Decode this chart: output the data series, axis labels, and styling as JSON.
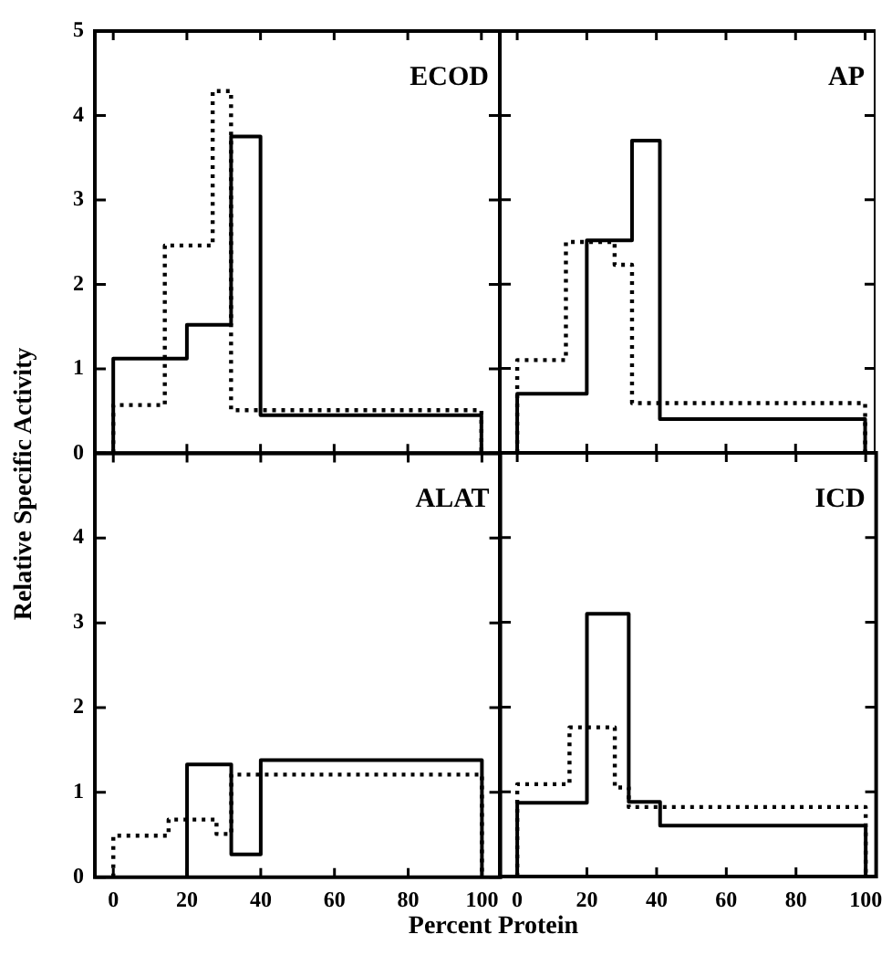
{
  "chart_data": [
    {
      "type": "step",
      "title": "ECOD",
      "ylabel": "Relative Specific Activity",
      "xlim": [
        -5,
        105
      ],
      "ylim": [
        0,
        5
      ],
      "xticks": [
        0,
        20,
        40,
        60,
        80,
        100
      ],
      "yticks": [
        0,
        1,
        2,
        3,
        4,
        5
      ],
      "tick_labels": "y",
      "series": [
        {
          "color": "#000000",
          "line_style": "solid",
          "x": [
            0,
            20,
            32,
            40,
            100,
            100
          ],
          "values": [
            0,
            1.12,
            1.52,
            3.75,
            0.45,
            0
          ]
        },
        {
          "color": "#000000",
          "line_style": "dotted",
          "x": [
            0,
            14,
            27,
            32,
            100,
            100
          ],
          "values": [
            0,
            0.57,
            2.46,
            4.29,
            0.51,
            0
          ]
        }
      ]
    },
    {
      "type": "step",
      "title": "AP",
      "xlim": [
        -5,
        103
      ],
      "ylim": [
        0,
        5
      ],
      "xticks": [
        0,
        20,
        40,
        60,
        80,
        100
      ],
      "yticks": [
        0,
        1,
        2,
        3,
        4
      ],
      "tick_labels": false,
      "series": [
        {
          "color": "#000000",
          "line_style": "solid",
          "x": [
            0,
            20,
            33,
            41,
            100,
            100
          ],
          "values": [
            0,
            0.7,
            2.52,
            3.7,
            0.4,
            0
          ]
        },
        {
          "color": "#000000",
          "line_style": "dotted",
          "x": [
            0,
            14,
            28,
            33,
            100,
            100
          ],
          "values": [
            0,
            1.1,
            2.5,
            2.23,
            0.59,
            0
          ]
        }
      ]
    },
    {
      "type": "step",
      "title": "ALAT",
      "xlabel": "Percent Protein",
      "xlim": [
        -5,
        105
      ],
      "ylim": [
        0,
        5
      ],
      "xticks": [
        0,
        20,
        40,
        60,
        80,
        100
      ],
      "yticks": [
        0,
        1,
        2,
        3,
        4
      ],
      "series": [
        {
          "color": "#000000",
          "line_style": "solid",
          "x": [
            20,
            32,
            40,
            100,
            100
          ],
          "values": [
            0,
            1.33,
            0.27,
            1.38,
            0
          ]
        },
        {
          "color": "#000000",
          "line_style": "dotted",
          "x": [
            0,
            15,
            28,
            32,
            100,
            100
          ],
          "values": [
            0,
            0.49,
            0.68,
            0.51,
            1.21,
            0
          ]
        }
      ]
    },
    {
      "type": "step",
      "title": "ICD",
      "xlim": [
        -5,
        103
      ],
      "ylim": [
        0,
        5
      ],
      "xticks": [
        0,
        20,
        40,
        60,
        80,
        100
      ],
      "yticks": [
        0,
        1,
        2,
        3,
        4
      ],
      "tick_labels": "x",
      "series": [
        {
          "color": "#000000",
          "line_style": "solid",
          "x": [
            0,
            20,
            32,
            41,
            100,
            100
          ],
          "values": [
            0,
            0.87,
            3.1,
            0.88,
            0.6,
            0
          ]
        },
        {
          "color": "#000000",
          "line_style": "dotted",
          "x": [
            0,
            15,
            28,
            32,
            100,
            100
          ],
          "values": [
            0,
            1.09,
            1.76,
            1.05,
            0.82,
            0
          ]
        }
      ]
    }
  ]
}
